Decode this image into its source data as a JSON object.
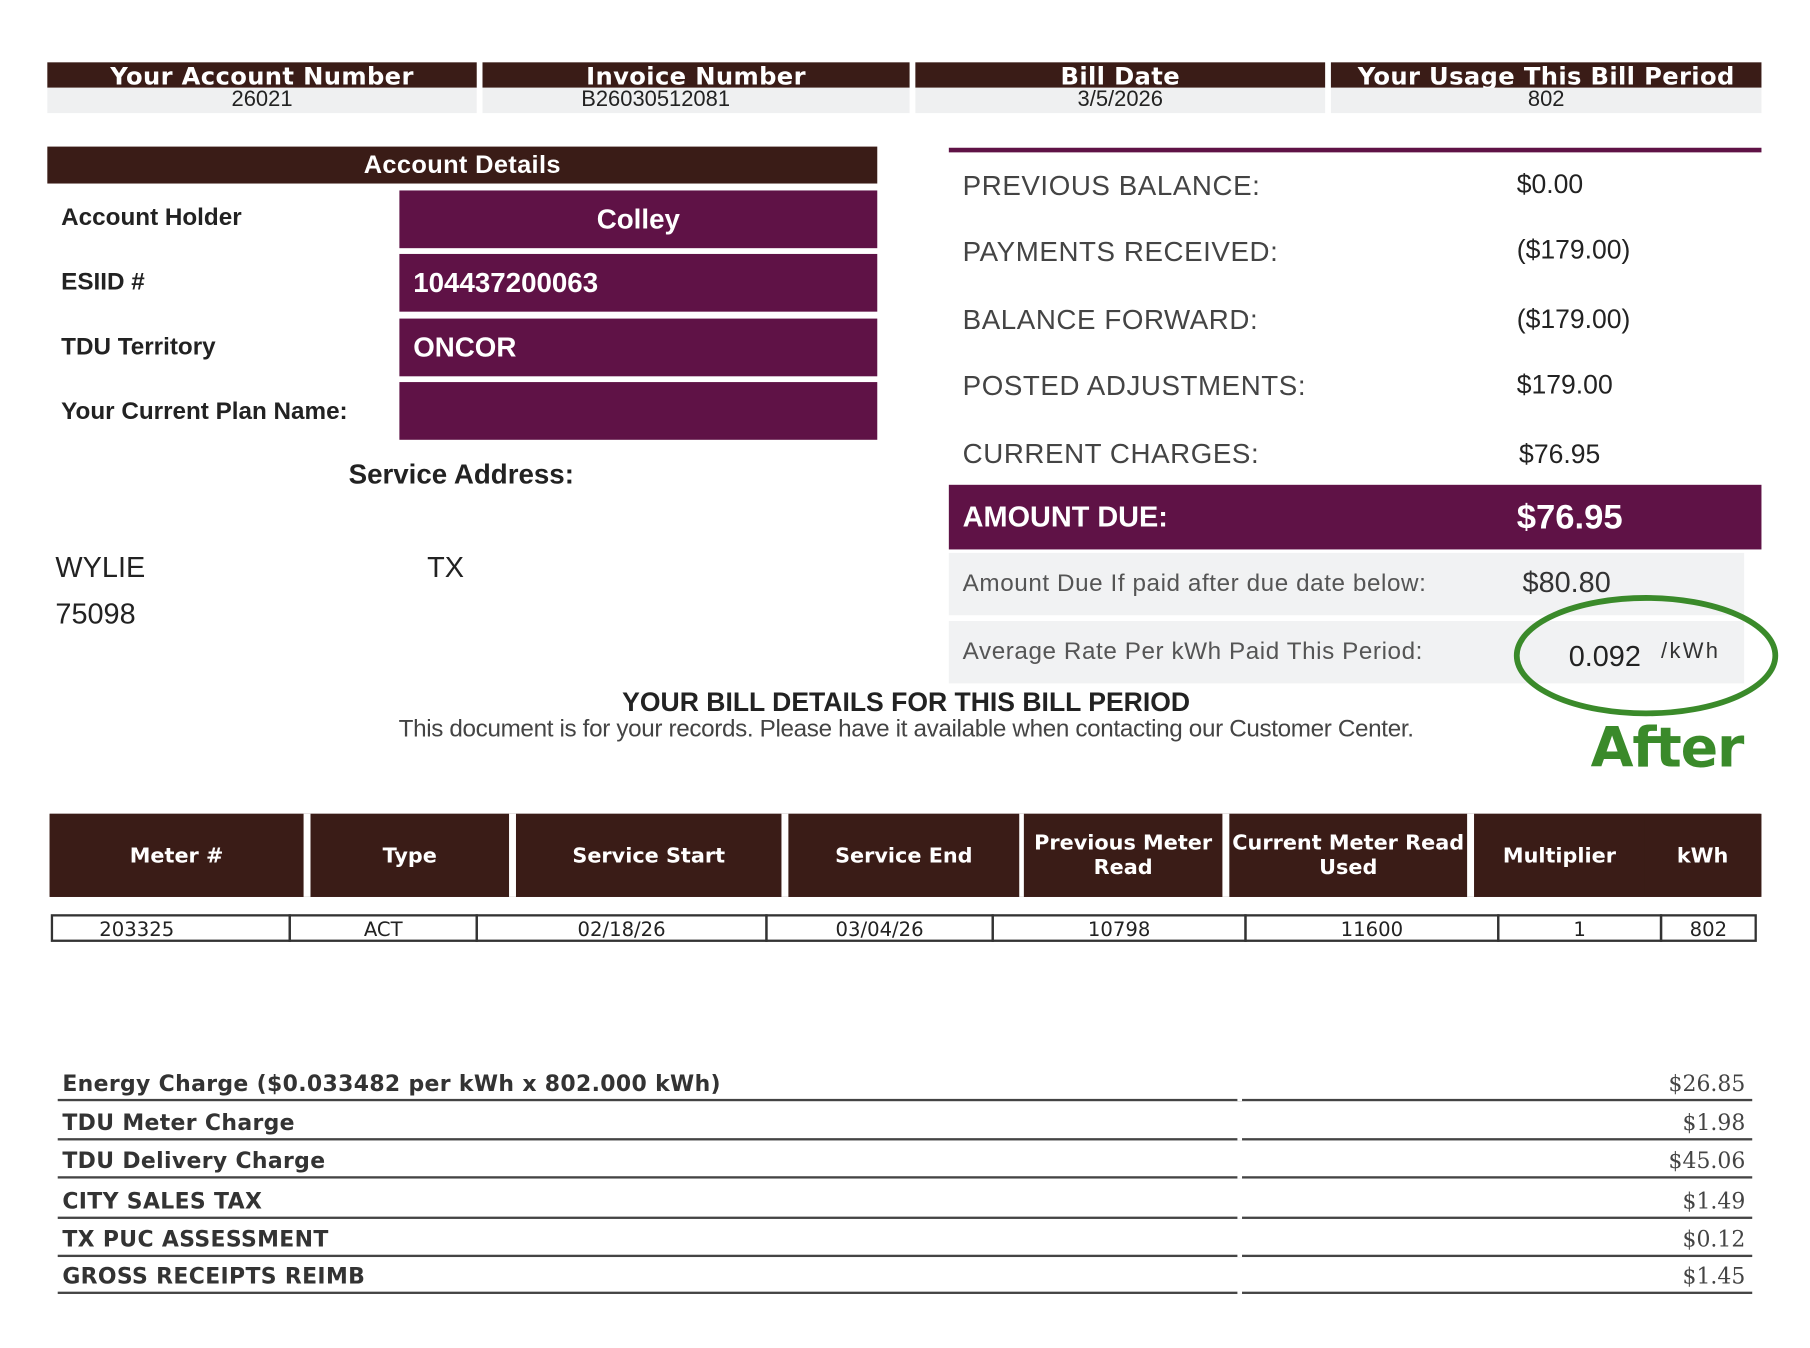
{
  "header": {
    "columns": [
      {
        "label": "Your Account Number",
        "value": "26021"
      },
      {
        "label": "Invoice Number",
        "value": "B26030512081"
      },
      {
        "label": "Bill Date",
        "value": "3/5/2026"
      },
      {
        "label": "Your Usage This Bill Period",
        "value": "802"
      }
    ]
  },
  "account_details": {
    "title": "Account Details",
    "rows": [
      {
        "label": "Account Holder",
        "value": "Colley"
      },
      {
        "label": "ESIID #",
        "value": "104437200063"
      },
      {
        "label": "TDU Territory",
        "value": "ONCOR"
      },
      {
        "label": "Your Current Plan Name:",
        "value": ""
      }
    ],
    "service_address_label": "Service Address:",
    "city": "WYLIE",
    "state": "TX",
    "zip": "75098"
  },
  "summary": {
    "rows": [
      {
        "label": "PREVIOUS BALANCE:",
        "value": "$0.00"
      },
      {
        "label": "PAYMENTS RECEIVED:",
        "value": "($179.00)"
      },
      {
        "label": "BALANCE FORWARD:",
        "value": "($179.00)"
      },
      {
        "label": "POSTED ADJUSTMENTS:",
        "value": "$179.00"
      },
      {
        "label": "CURRENT CHARGES:",
        "value": "$76.95"
      }
    ],
    "amount_due_label": "AMOUNT DUE:",
    "amount_due_value": "$76.95",
    "late_label": "Amount Due If paid after due date below:",
    "late_value": "$80.80",
    "avg_rate_label": "Average Rate Per kWh Paid This Period:",
    "avg_rate_value": "0.092",
    "avg_rate_unit": "/kWh",
    "annotation": "After",
    "colors": {
      "brown": "#3a1c17",
      "purple": "#5f1246",
      "annotation_green": "#3a8a2a"
    }
  },
  "details": {
    "title": "YOUR BILL DETAILS FOR THIS BILL PERIOD",
    "subtitle": "This document is for your records. Please have it available when contacting our Customer Center."
  },
  "meter_table": {
    "headers": [
      "Meter #",
      "Type",
      "Service Start",
      "Service End",
      "Previous Meter Read",
      "Current Meter Read Used",
      "Multiplier",
      "kWh"
    ],
    "rows": [
      [
        "203325",
        "ACT",
        "02/18/26",
        "03/04/26",
        "10798",
        "11600",
        "1",
        "802"
      ]
    ]
  },
  "charges": [
    {
      "name": "Energy Charge ($0.033482 per kWh x 802.000 kWh)",
      "amount": "$26.85"
    },
    {
      "name": "TDU Meter Charge",
      "amount": "$1.98"
    },
    {
      "name": "TDU Delivery Charge",
      "amount": "$45.06"
    },
    {
      "name": "CITY SALES TAX",
      "amount": "$1.49"
    },
    {
      "name": "TX PUC ASSESSMENT",
      "amount": "$0.12"
    },
    {
      "name": "GROSS RECEIPTS REIMB",
      "amount": "$1.45"
    }
  ]
}
